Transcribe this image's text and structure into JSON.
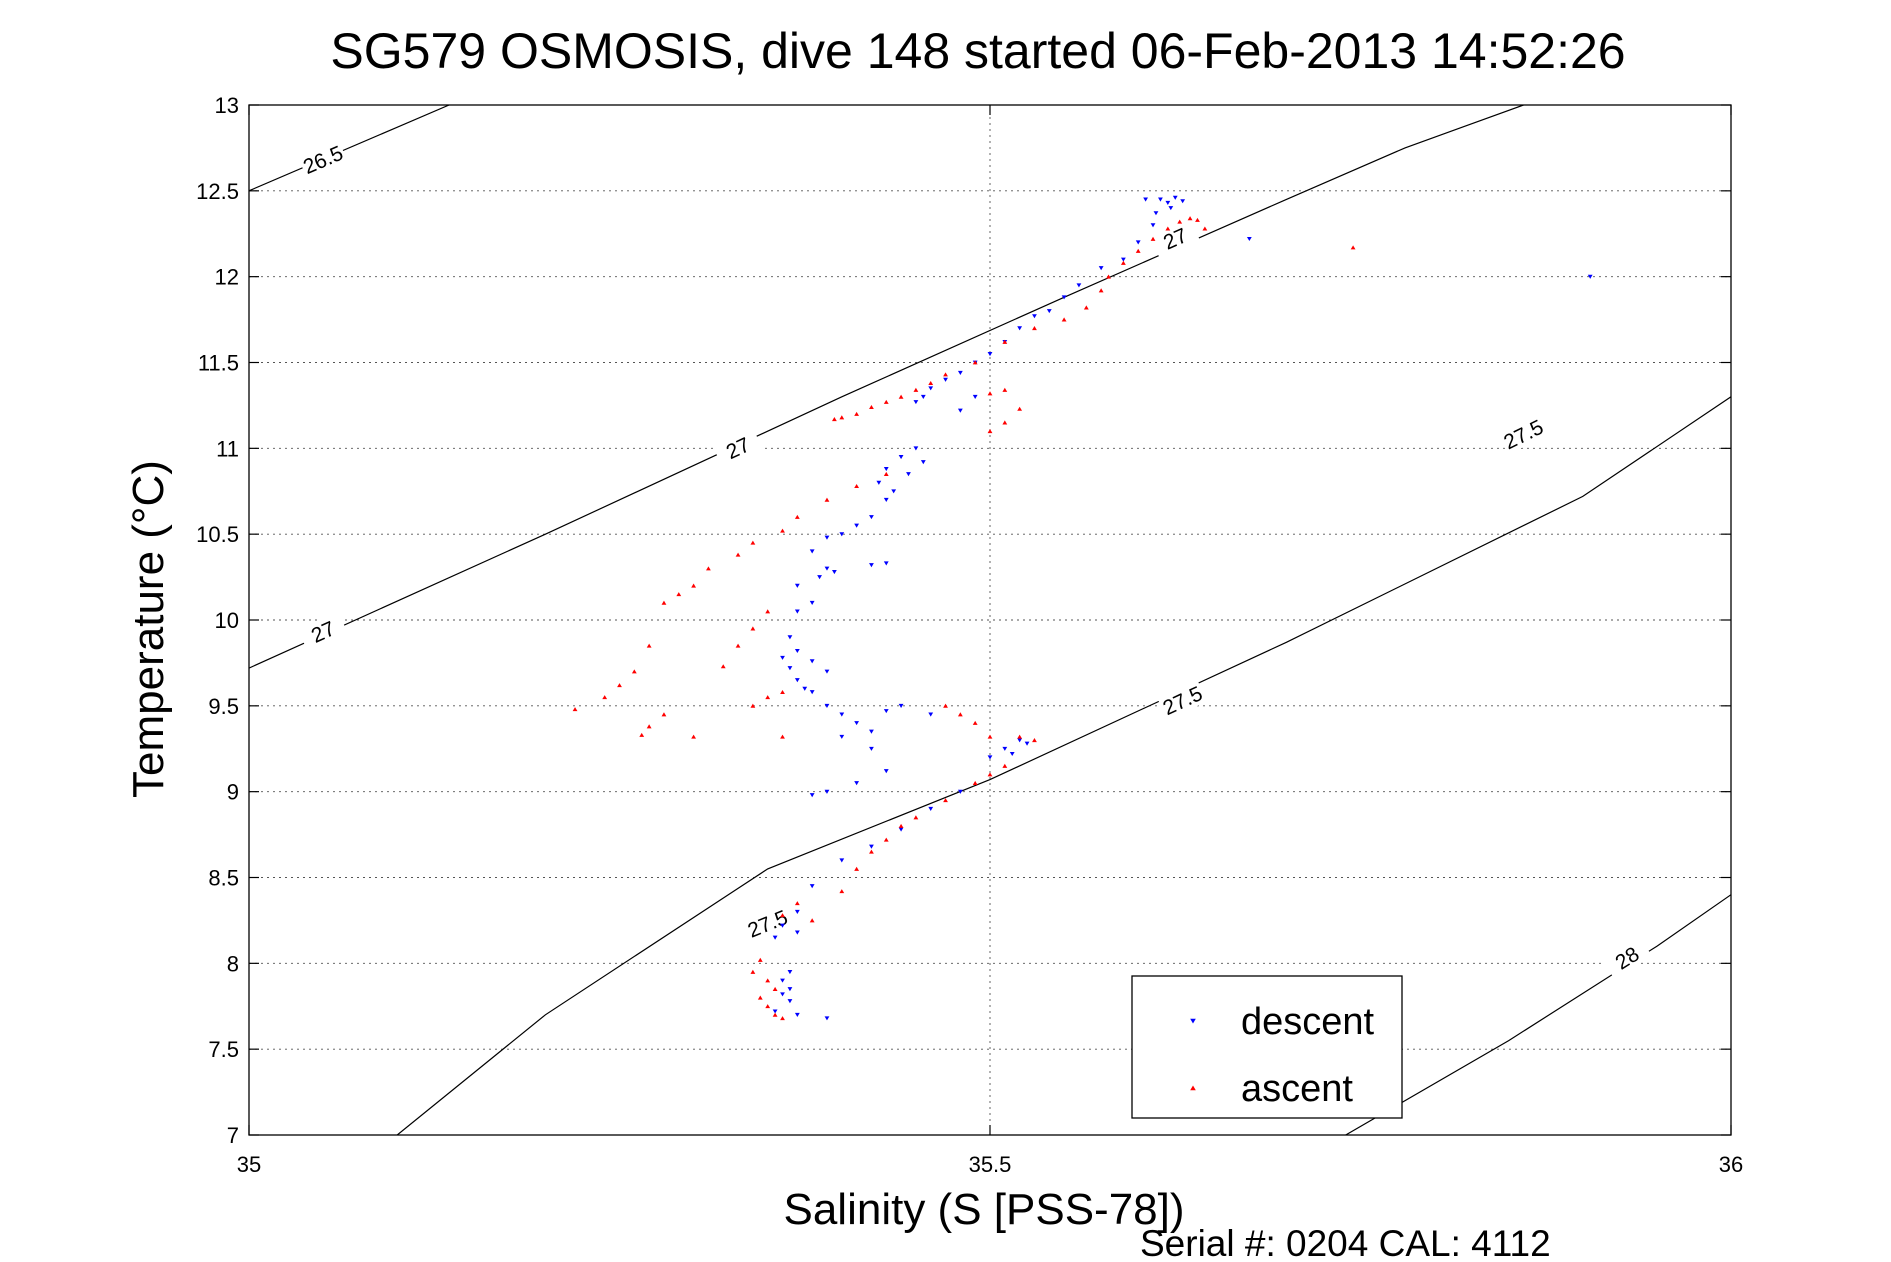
{
  "chart_data": {
    "type": "scatter",
    "title": "SG579 OSMOSIS, dive 148 started 06-Feb-2013 14:52:26",
    "xlabel": "Salinity (S [PSS-78])",
    "ylabel": "Temperature (°C)",
    "footer": "Serial #: 0204  CAL: 4112",
    "xlim": [
      35,
      36
    ],
    "ylim": [
      7,
      13
    ],
    "xticks": [
      35,
      35.5,
      36
    ],
    "xtick_labels": [
      "35",
      "35.5",
      "36"
    ],
    "yticks": [
      7,
      7.5,
      8,
      8.5,
      9,
      9.5,
      10,
      10.5,
      11,
      11.5,
      12,
      12.5,
      13
    ],
    "ytick_labels": [
      "7",
      "7.5",
      "8",
      "8.5",
      "9",
      "9.5",
      "10",
      "10.5",
      "11",
      "11.5",
      "12",
      "12.5",
      "13"
    ],
    "grid": true,
    "legend_position": "bottom-right",
    "density_contours": [
      {
        "label": "26.5",
        "points": [
          [
            35.0,
            12.5
          ],
          [
            35.135,
            13.0
          ]
        ],
        "label_positions": [
          [
            35.05,
            12.68
          ]
        ]
      },
      {
        "label": "27",
        "points": [
          [
            35.0,
            9.72
          ],
          [
            35.2,
            10.5
          ],
          [
            35.4,
            11.3
          ],
          [
            35.55,
            11.88
          ],
          [
            35.7,
            12.45
          ],
          [
            35.78,
            12.75
          ],
          [
            35.86,
            13.0
          ]
        ],
        "label_positions": [
          [
            35.05,
            9.93
          ],
          [
            35.33,
            11.0
          ],
          [
            35.625,
            12.22
          ]
        ]
      },
      {
        "label": "27.5",
        "points": [
          [
            35.1,
            7.0
          ],
          [
            35.2,
            7.7
          ],
          [
            35.35,
            8.55
          ],
          [
            35.5,
            9.07
          ],
          [
            35.7,
            9.87
          ],
          [
            35.9,
            10.72
          ],
          [
            36.0,
            11.3
          ]
        ],
        "label_positions": [
          [
            35.35,
            8.23
          ],
          [
            35.63,
            9.53
          ],
          [
            35.86,
            11.08
          ]
        ]
      },
      {
        "label": "28",
        "points": [
          [
            35.74,
            7.0
          ],
          [
            35.85,
            7.55
          ],
          [
            35.95,
            8.1
          ],
          [
            36.0,
            8.4
          ]
        ],
        "label_positions": [
          [
            35.93,
            8.03
          ]
        ]
      }
    ],
    "series": [
      {
        "name": "descent",
        "color": "#0000ff",
        "marker": "triangle-down",
        "points": [
          [
            35.605,
            12.45
          ],
          [
            35.615,
            12.45
          ],
          [
            35.625,
            12.46
          ],
          [
            35.63,
            12.44
          ],
          [
            35.622,
            12.4
          ],
          [
            35.612,
            12.37
          ],
          [
            35.62,
            12.43
          ],
          [
            35.675,
            12.22
          ],
          [
            35.905,
            12.0
          ],
          [
            35.61,
            12.3
          ],
          [
            35.6,
            12.2
          ],
          [
            35.59,
            12.1
          ],
          [
            35.575,
            12.05
          ],
          [
            35.56,
            11.95
          ],
          [
            35.55,
            11.88
          ],
          [
            35.54,
            11.8
          ],
          [
            35.53,
            11.77
          ],
          [
            35.52,
            11.7
          ],
          [
            35.51,
            11.62
          ],
          [
            35.5,
            11.55
          ],
          [
            35.49,
            11.5
          ],
          [
            35.48,
            11.44
          ],
          [
            35.47,
            11.4
          ],
          [
            35.46,
            11.35
          ],
          [
            35.455,
            11.3
          ],
          [
            35.45,
            11.27
          ],
          [
            35.48,
            11.22
          ],
          [
            35.49,
            11.3
          ],
          [
            35.45,
            11.0
          ],
          [
            35.44,
            10.95
          ],
          [
            35.43,
            10.88
          ],
          [
            35.425,
            10.8
          ],
          [
            35.435,
            10.75
          ],
          [
            35.43,
            10.7
          ],
          [
            35.445,
            10.85
          ],
          [
            35.455,
            10.92
          ],
          [
            35.42,
            10.6
          ],
          [
            35.41,
            10.55
          ],
          [
            35.4,
            10.5
          ],
          [
            35.39,
            10.48
          ],
          [
            35.38,
            10.4
          ],
          [
            35.43,
            10.33
          ],
          [
            35.42,
            10.32
          ],
          [
            35.395,
            10.28
          ],
          [
            35.39,
            10.3
          ],
          [
            35.385,
            10.25
          ],
          [
            35.37,
            10.2
          ],
          [
            35.37,
            10.05
          ],
          [
            35.38,
            10.1
          ],
          [
            35.365,
            9.9
          ],
          [
            35.37,
            9.82
          ],
          [
            35.38,
            9.76
          ],
          [
            35.39,
            9.7
          ],
          [
            35.36,
            9.78
          ],
          [
            35.365,
            9.72
          ],
          [
            35.37,
            9.65
          ],
          [
            35.375,
            9.6
          ],
          [
            35.38,
            9.58
          ],
          [
            35.39,
            9.5
          ],
          [
            35.4,
            9.45
          ],
          [
            35.41,
            9.4
          ],
          [
            35.42,
            9.35
          ],
          [
            35.43,
            9.47
          ],
          [
            35.44,
            9.5
          ],
          [
            35.46,
            9.45
          ],
          [
            35.4,
            9.32
          ],
          [
            35.42,
            9.25
          ],
          [
            35.43,
            9.12
          ],
          [
            35.41,
            9.05
          ],
          [
            35.39,
            9.0
          ],
          [
            35.38,
            8.98
          ],
          [
            35.5,
            9.2
          ],
          [
            35.51,
            9.25
          ],
          [
            35.52,
            9.3
          ],
          [
            35.525,
            9.28
          ],
          [
            35.515,
            9.22
          ],
          [
            35.48,
            9.0
          ],
          [
            35.46,
            8.9
          ],
          [
            35.44,
            8.78
          ],
          [
            35.42,
            8.68
          ],
          [
            35.4,
            8.6
          ],
          [
            35.38,
            8.45
          ],
          [
            35.37,
            8.3
          ],
          [
            35.36,
            8.22
          ],
          [
            35.355,
            8.15
          ],
          [
            35.37,
            8.18
          ],
          [
            35.365,
            7.95
          ],
          [
            35.36,
            7.9
          ],
          [
            35.365,
            7.85
          ],
          [
            35.36,
            7.82
          ],
          [
            35.365,
            7.78
          ],
          [
            35.355,
            7.72
          ],
          [
            35.37,
            7.7
          ],
          [
            35.39,
            7.68
          ]
        ]
      },
      {
        "name": "ascent",
        "color": "#ff0000",
        "marker": "triangle-up",
        "points": [
          [
            35.64,
            12.33
          ],
          [
            35.635,
            12.34
          ],
          [
            35.628,
            12.32
          ],
          [
            35.645,
            12.28
          ],
          [
            35.745,
            12.17
          ],
          [
            35.62,
            12.28
          ],
          [
            35.61,
            12.22
          ],
          [
            35.6,
            12.15
          ],
          [
            35.59,
            12.08
          ],
          [
            35.58,
            12.0
          ],
          [
            35.575,
            11.92
          ],
          [
            35.565,
            11.82
          ],
          [
            35.55,
            11.75
          ],
          [
            35.53,
            11.7
          ],
          [
            35.51,
            11.62
          ],
          [
            35.49,
            11.5
          ],
          [
            35.47,
            11.43
          ],
          [
            35.46,
            11.38
          ],
          [
            35.45,
            11.34
          ],
          [
            35.44,
            11.3
          ],
          [
            35.43,
            11.27
          ],
          [
            35.42,
            11.24
          ],
          [
            35.41,
            11.2
          ],
          [
            35.4,
            11.18
          ],
          [
            35.395,
            11.17
          ],
          [
            35.5,
            11.32
          ],
          [
            35.51,
            11.34
          ],
          [
            35.52,
            11.23
          ],
          [
            35.51,
            11.15
          ],
          [
            35.5,
            11.1
          ],
          [
            35.43,
            10.85
          ],
          [
            35.41,
            10.78
          ],
          [
            35.39,
            10.7
          ],
          [
            35.37,
            10.6
          ],
          [
            35.36,
            10.52
          ],
          [
            35.34,
            10.45
          ],
          [
            35.33,
            10.38
          ],
          [
            35.31,
            10.3
          ],
          [
            35.3,
            10.2
          ],
          [
            35.29,
            10.15
          ],
          [
            35.28,
            10.1
          ],
          [
            35.35,
            10.05
          ],
          [
            35.34,
            9.95
          ],
          [
            35.33,
            9.85
          ],
          [
            35.32,
            9.73
          ],
          [
            35.27,
            9.85
          ],
          [
            35.26,
            9.7
          ],
          [
            35.25,
            9.62
          ],
          [
            35.24,
            9.55
          ],
          [
            35.22,
            9.48
          ],
          [
            35.34,
            9.5
          ],
          [
            35.35,
            9.55
          ],
          [
            35.36,
            9.58
          ],
          [
            35.28,
            9.45
          ],
          [
            35.27,
            9.38
          ],
          [
            35.265,
            9.33
          ],
          [
            35.36,
            9.32
          ],
          [
            35.3,
            9.32
          ],
          [
            35.47,
            9.5
          ],
          [
            35.48,
            9.45
          ],
          [
            35.49,
            9.4
          ],
          [
            35.5,
            9.32
          ],
          [
            35.52,
            9.32
          ],
          [
            35.53,
            9.3
          ],
          [
            35.51,
            9.15
          ],
          [
            35.5,
            9.1
          ],
          [
            35.49,
            9.05
          ],
          [
            35.47,
            8.95
          ],
          [
            35.45,
            8.85
          ],
          [
            35.44,
            8.8
          ],
          [
            35.43,
            8.72
          ],
          [
            35.42,
            8.65
          ],
          [
            35.41,
            8.55
          ],
          [
            35.4,
            8.42
          ],
          [
            35.37,
            8.35
          ],
          [
            35.36,
            8.28
          ],
          [
            35.38,
            8.25
          ],
          [
            35.345,
            8.02
          ],
          [
            35.34,
            7.95
          ],
          [
            35.35,
            7.9
          ],
          [
            35.355,
            7.85
          ],
          [
            35.345,
            7.8
          ],
          [
            35.35,
            7.75
          ],
          [
            35.355,
            7.7
          ],
          [
            35.36,
            7.68
          ]
        ]
      }
    ]
  }
}
